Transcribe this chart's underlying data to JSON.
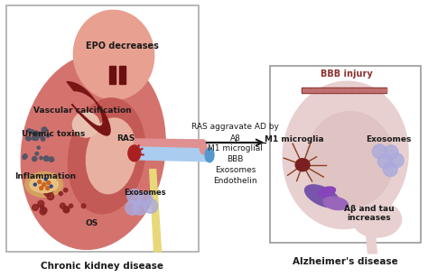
{
  "bg_color": "#ffffff",
  "kidney_outer_color": "#d4736e",
  "kidney_upper_lobe": "#e8a090",
  "kidney_inner_color": "#c45a55",
  "kidney_pelvis_color": "#e8b0a0",
  "vascular_color": "#7a1515",
  "ras_color": "#aa2020",
  "ureter_color": "#e8d87a",
  "artery_color": "#e09090",
  "vein_color": "#aaccee",
  "brain_outer": "#e8d0d0",
  "brain_inner": "#dfc0c0",
  "brain_stem_color": "#d8c0c0",
  "bbb_bar_color": "#8b3030",
  "bbb_bar_fill": "#c07070",
  "microglia_body": "#7a2020",
  "microglia_arms": "#8b4020",
  "exosome_color": "#aaaadd",
  "amyloid_color": "#7755aa",
  "amyloid2_color": "#9966bb",
  "dot_dark": "#555555",
  "dot_red": "#cc3333",
  "dot_orange": "#cc7722",
  "epo_color": "#6b1010",
  "arrow_color": "#1a1a1a",
  "text_color": "#1a1a1a",
  "title_left": "Chronic kidney disease",
  "title_right": "Alzheimer's disease",
  "middle_text_top": "RAS aggravate AD by",
  "middle_text_ab": "Aβ",
  "middle_text_lines": [
    "M1 microglial",
    "BBB",
    "Exosomes",
    "Endothelin"
  ],
  "kidney_labels": [
    "EPO decreases",
    "Vascular calcification",
    "Uremic toxins",
    "RAS",
    "Inflammation",
    "Exosomes",
    "OS"
  ],
  "brain_labels": [
    "BBB injury",
    "M1 microglia",
    "Exosomes",
    "Aβ and tau\nincreases"
  ],
  "figw": 4.74,
  "figh": 3.07,
  "dpi": 100
}
